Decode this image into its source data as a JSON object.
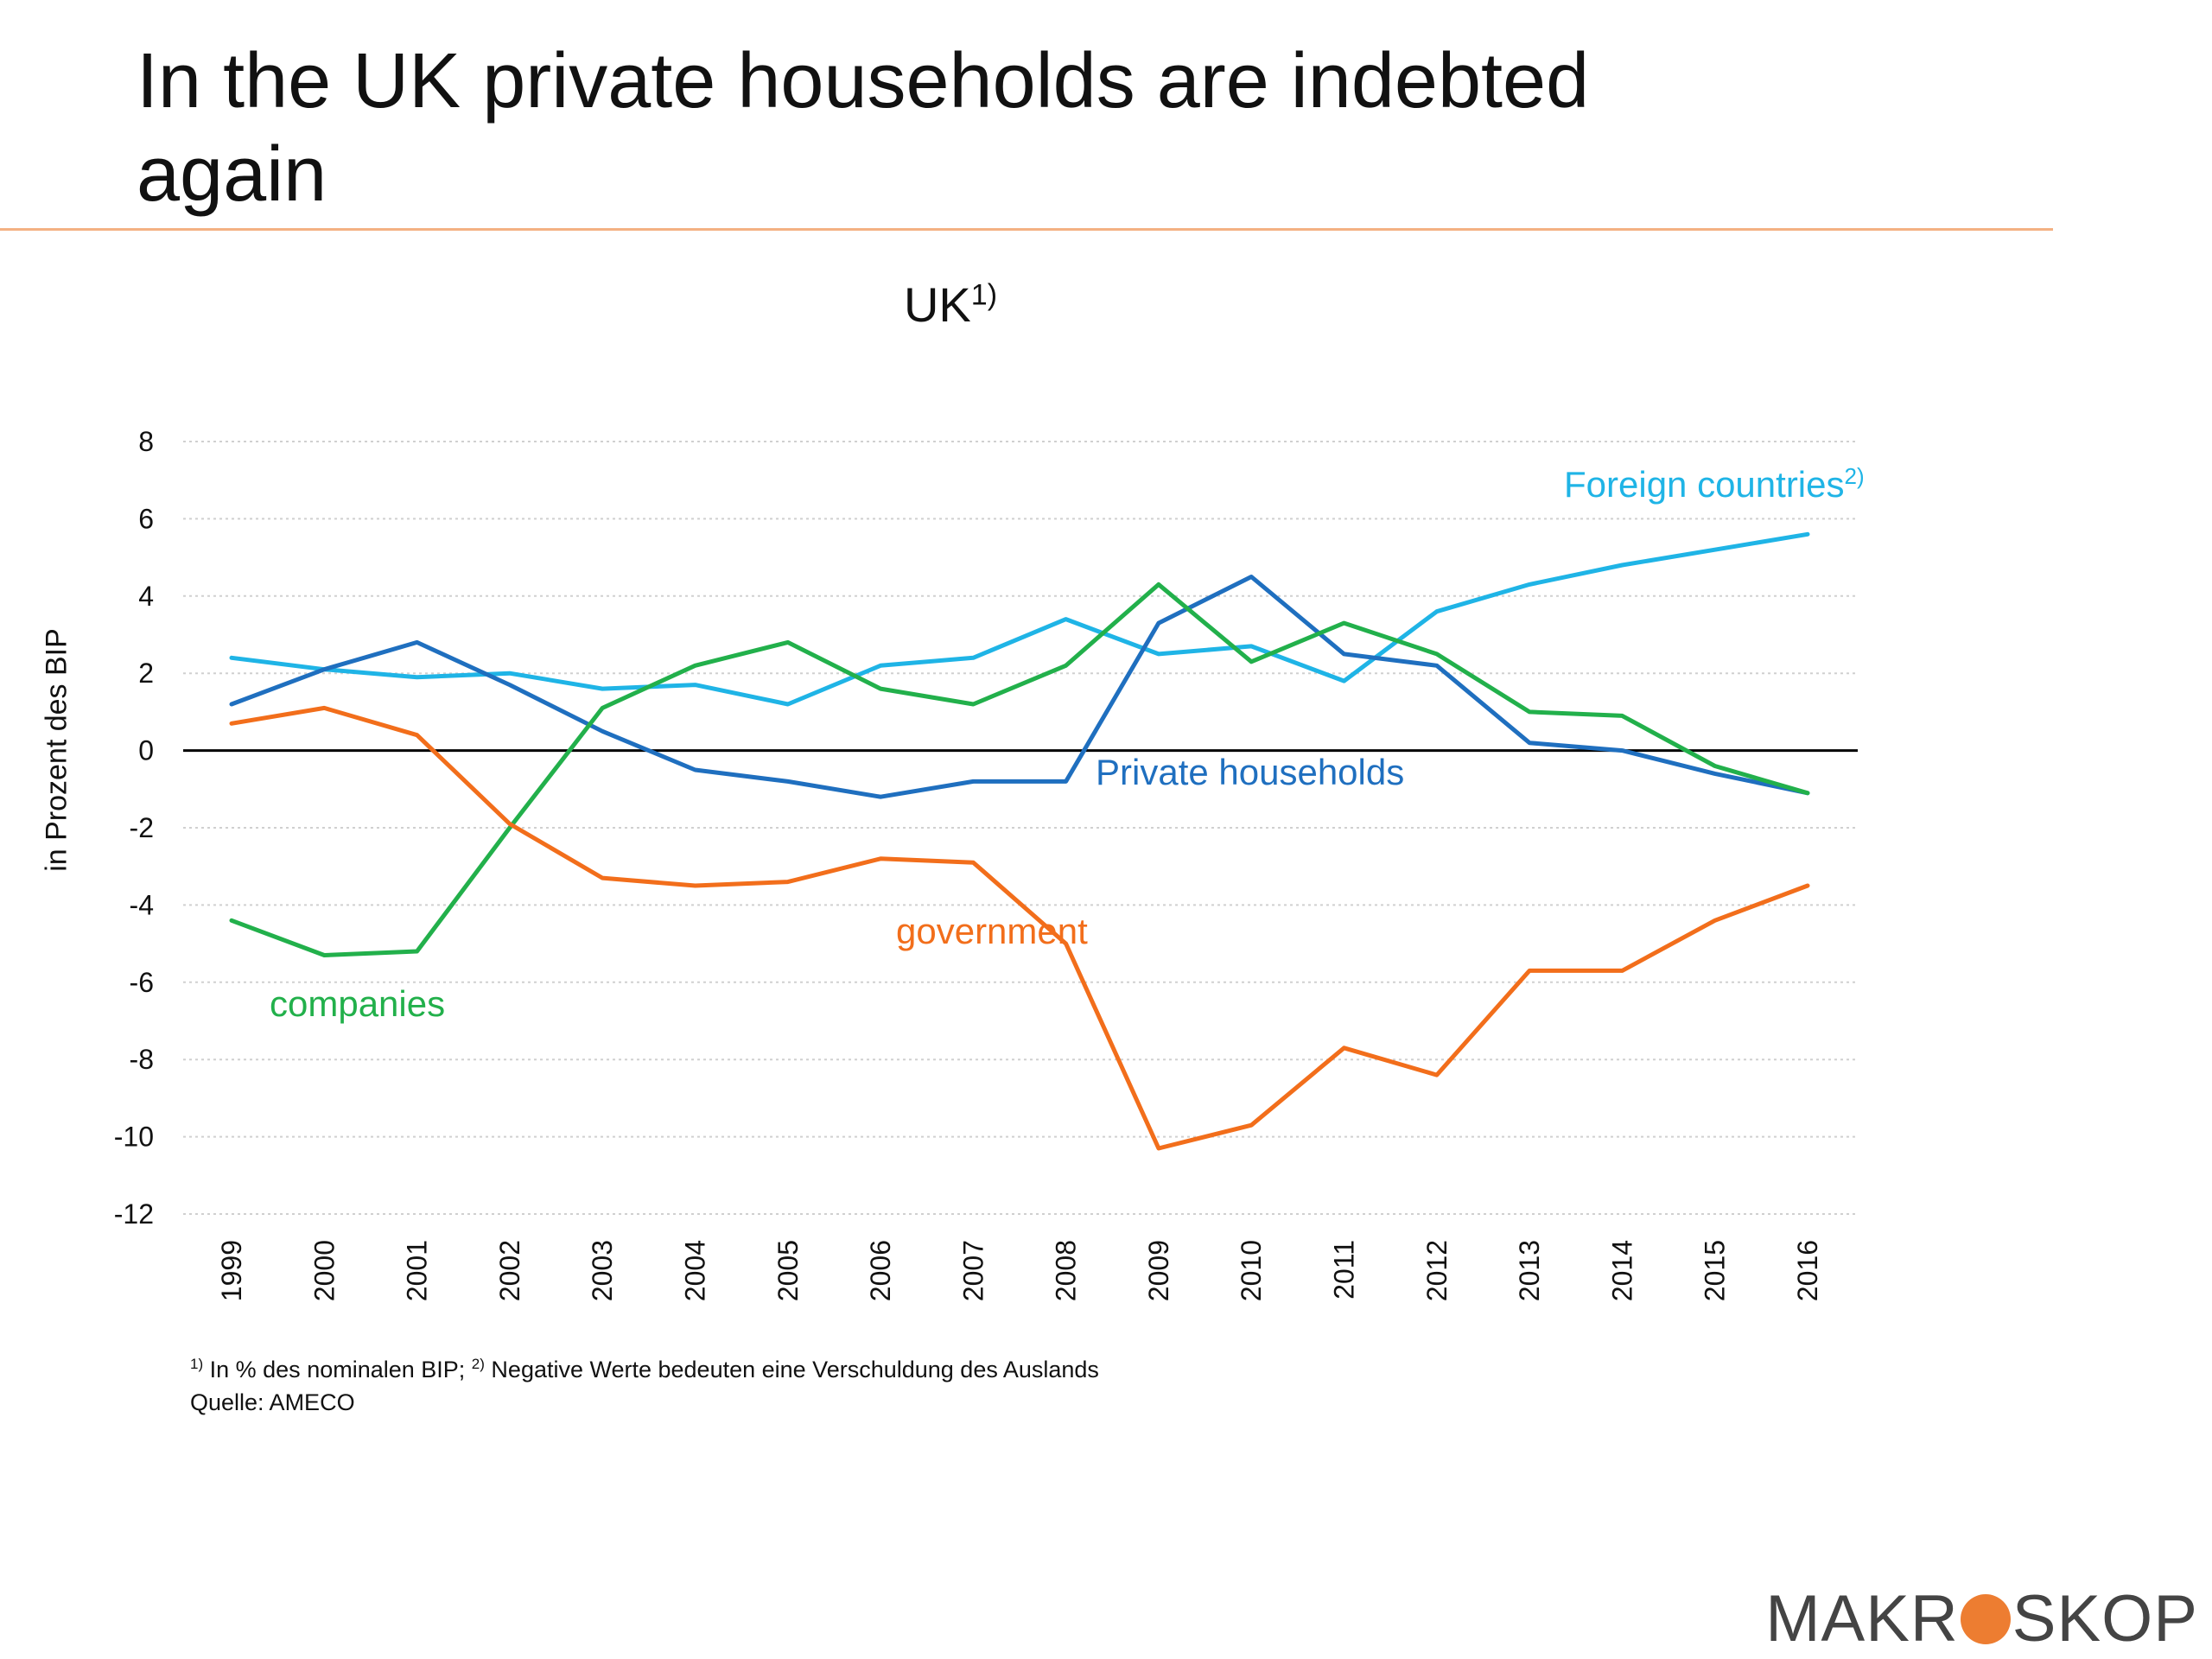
{
  "slide": {
    "title": "In the UK private households are indebted again"
  },
  "chart_title": {
    "text": "UK",
    "sup": "1)"
  },
  "footnote": {
    "sup1": "1)",
    "part1": " In % des nominalen BIP; ",
    "sup2": "2)",
    "part2": " Negative Werte bedeuten eine Verschuldung des Auslands",
    "source": "Quelle: AMECO"
  },
  "brand": {
    "left": "MAKR",
    "right": "SKOP",
    "dot_color": "#ED7D31"
  },
  "chart_data": {
    "type": "line",
    "title": "UK",
    "ylabel": "in Prozent des BIP",
    "xlabel": "",
    "ylim": [
      -12,
      8
    ],
    "yticks": [
      8,
      6,
      4,
      2,
      0,
      -2,
      -4,
      -6,
      -8,
      -10,
      -12
    ],
    "grid": true,
    "legend": "inline labels",
    "categories": [
      "1999",
      "2000",
      "2001",
      "2002",
      "2003",
      "2004",
      "2005",
      "2006",
      "2007",
      "2008",
      "2009",
      "2010",
      "2011",
      "2012",
      "2013",
      "2014",
      "2015",
      "2016"
    ],
    "series": [
      {
        "name": "Foreign countries",
        "sup": "2)",
        "color": "#1FB4E6",
        "values": [
          2.4,
          2.1,
          1.9,
          2.0,
          1.6,
          1.7,
          1.2,
          2.2,
          2.4,
          3.4,
          2.5,
          2.7,
          1.8,
          3.6,
          4.3,
          4.8,
          5.2,
          5.6
        ]
      },
      {
        "name": "Private households",
        "color": "#1F6FBF",
        "values": [
          1.2,
          2.1,
          2.8,
          1.7,
          0.5,
          -0.5,
          -0.8,
          -1.2,
          -0.8,
          -0.8,
          3.3,
          4.5,
          2.5,
          2.2,
          0.2,
          0.0,
          -0.6,
          -1.1
        ]
      },
      {
        "name": "companies",
        "color": "#22B04B",
        "values": [
          -4.4,
          -5.3,
          -5.2,
          -2.0,
          1.1,
          2.2,
          2.8,
          1.6,
          1.2,
          2.2,
          4.3,
          2.3,
          3.3,
          2.5,
          1.0,
          0.9,
          -0.4,
          -1.1
        ]
      },
      {
        "name": "government",
        "color": "#F26E1B",
        "values": [
          0.7,
          1.1,
          0.4,
          -1.9,
          -3.3,
          -3.5,
          -3.4,
          -2.8,
          -2.9,
          -5.0,
          -10.3,
          -9.7,
          -7.7,
          -8.4,
          -5.7,
          -5.7,
          -4.4,
          -3.5
        ]
      }
    ]
  }
}
